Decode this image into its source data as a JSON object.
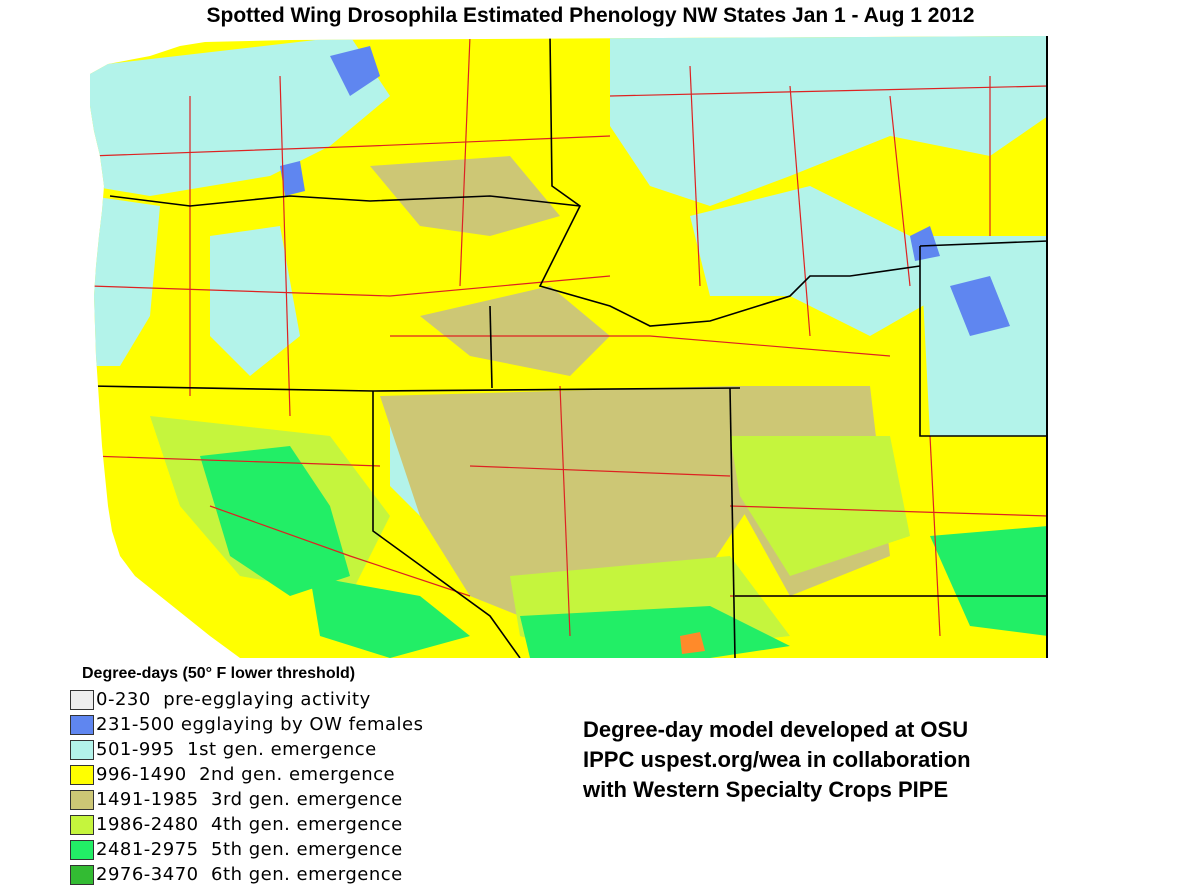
{
  "title": "Spotted Wing Drosophila Estimated Phenology NW States Jan 1 - Aug 1 2012",
  "legend": {
    "title": "Degree-days (50° F lower threshold)",
    "items": [
      {
        "label": "0-230  pre-egglaying activity",
        "color": "#eeeeee"
      },
      {
        "label": "231-500 egglaying by OW females",
        "color": "#5f86f0"
      },
      {
        "label": "501-995  1st gen. emergence",
        "color": "#b3f3ea"
      },
      {
        "label": "996-1490  2nd gen. emergence",
        "color": "#ffff00"
      },
      {
        "label": "1491-1985  3rd gen. emergence",
        "color": "#cdc775"
      },
      {
        "label": "1986-2480  4th gen. emergence",
        "color": "#c5f53d"
      },
      {
        "label": "2481-2975  5th gen. emergence",
        "color": "#22ee66"
      },
      {
        "label": "2976-3470  6th gen. emergence",
        "color": "#33bb33"
      }
    ]
  },
  "credit": [
    "Degree-day model developed at OSU",
    "IPPC uspest.org/wea in collaboration",
    "with Western Specialty Crops PIPE"
  ],
  "colors": {
    "ocean": "#ffffff",
    "county_lines": "#dd2222",
    "state_lines": "#000000"
  }
}
